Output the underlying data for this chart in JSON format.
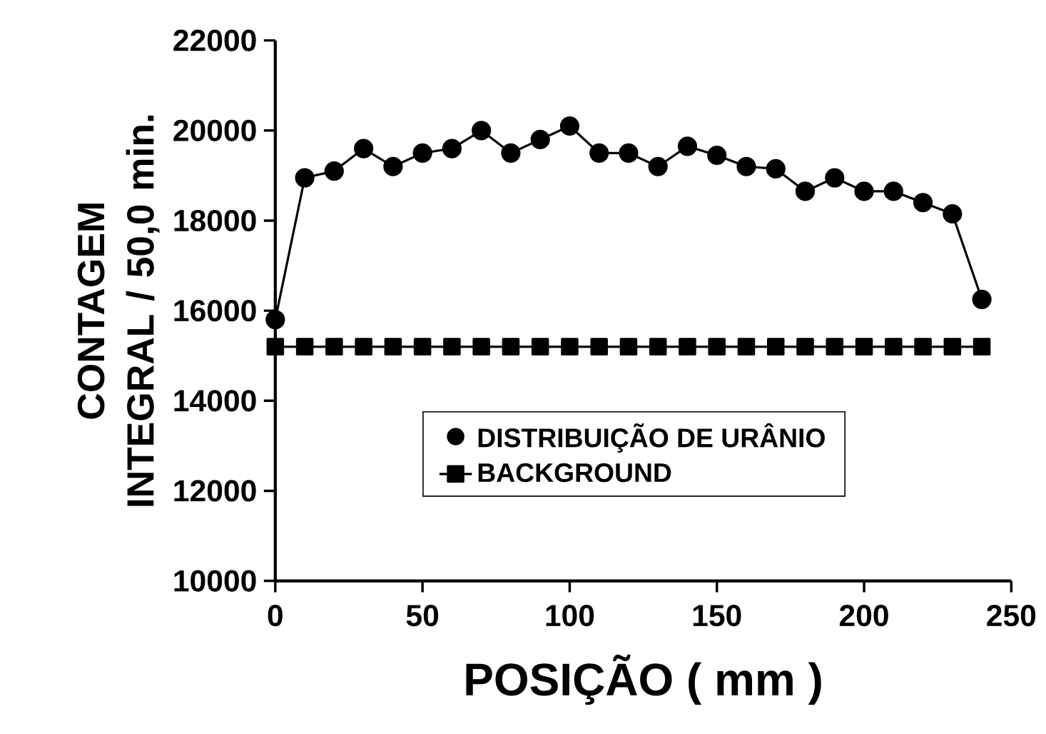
{
  "chart_data": {
    "type": "line",
    "xlabel": "POSIÇÃO ( mm )",
    "ylabel": "CONTAGEM INTEGRAL / 50,0 min.",
    "x": [
      0,
      10,
      20,
      30,
      40,
      50,
      60,
      70,
      80,
      90,
      100,
      110,
      120,
      130,
      140,
      150,
      160,
      170,
      180,
      190,
      200,
      210,
      220,
      230,
      240
    ],
    "series": [
      {
        "name": "DISTRIBUIÇÃO DE URÂNIO",
        "color": "#000000",
        "marker": "circle",
        "values": [
          15800,
          18950,
          19100,
          19600,
          19200,
          19500,
          19600,
          20000,
          19500,
          19800,
          20100,
          19500,
          19500,
          19200,
          19650,
          19450,
          19200,
          19150,
          18650,
          18950,
          18650,
          18650,
          18400,
          18150,
          16250
        ]
      },
      {
        "name": "BACKGROUND",
        "color": "#000000",
        "marker": "square",
        "values": [
          15200,
          15200,
          15200,
          15200,
          15200,
          15200,
          15200,
          15200,
          15200,
          15200,
          15200,
          15200,
          15200,
          15200,
          15200,
          15200,
          15200,
          15200,
          15200,
          15200,
          15200,
          15200,
          15200,
          15200,
          15200
        ]
      }
    ],
    "xlim": [
      0,
      250
    ],
    "xticks": [
      0,
      50,
      100,
      150,
      200,
      250
    ],
    "ylim": [
      10000,
      22000
    ],
    "yticks": [
      10000,
      12000,
      14000,
      16000,
      18000,
      20000,
      22000
    ],
    "grid": false,
    "legend": "bottom",
    "line_style": "solid"
  }
}
